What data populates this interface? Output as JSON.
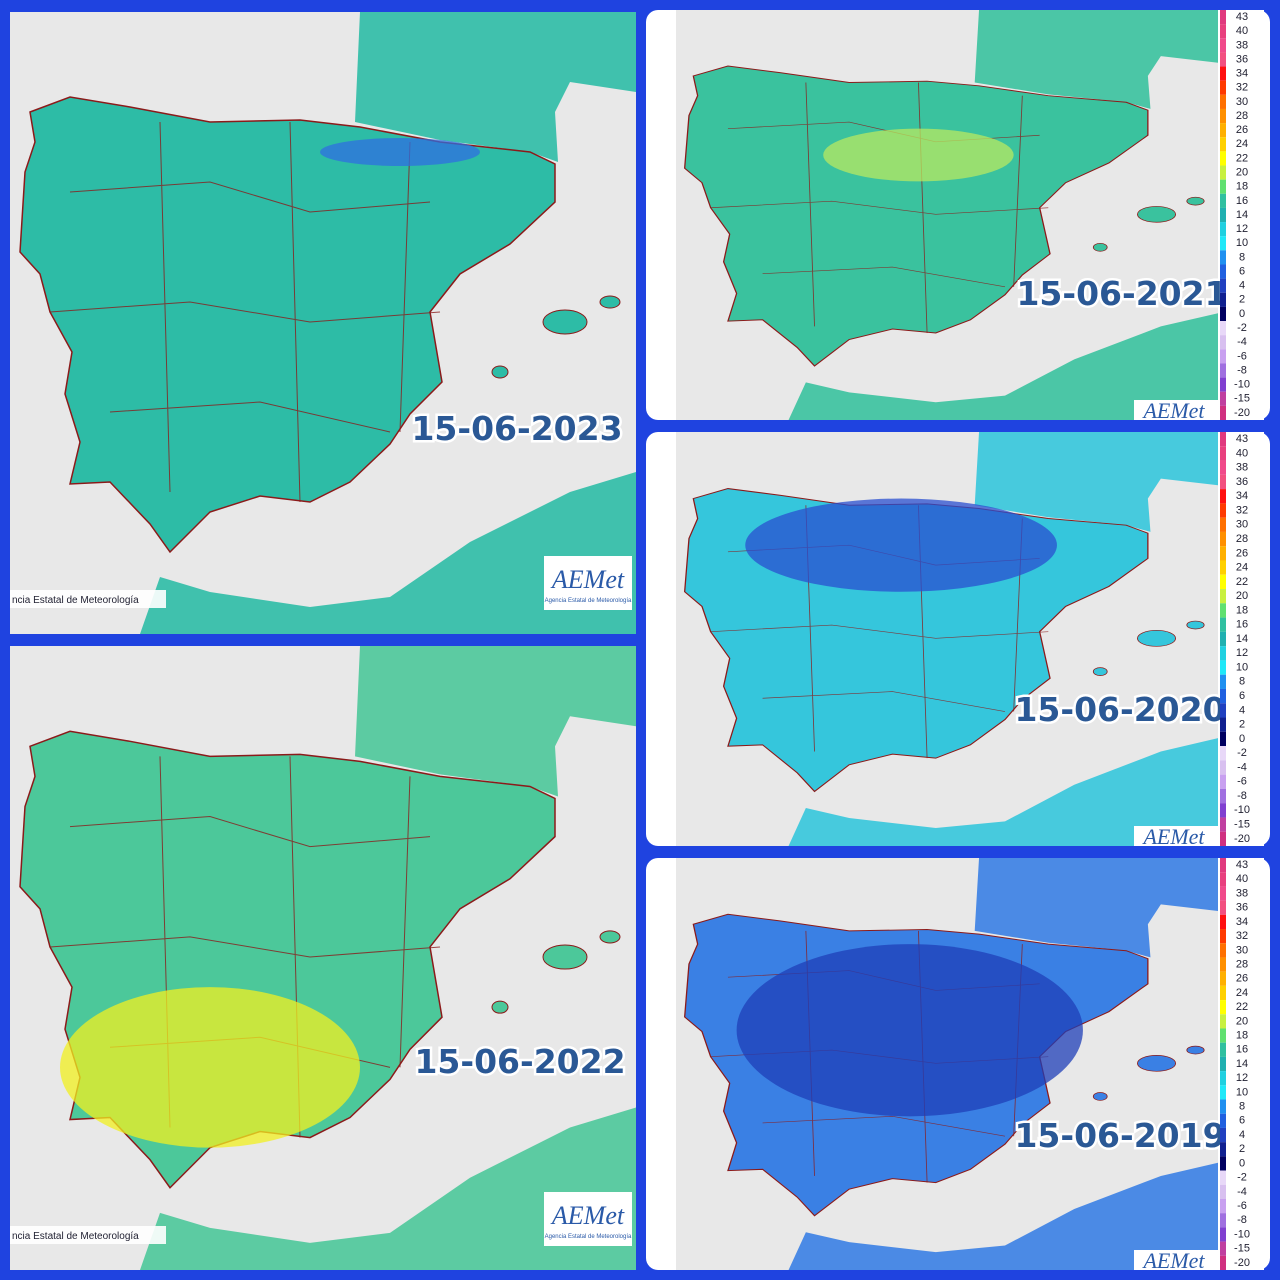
{
  "panels": [
    {
      "date": "15-06-2023",
      "credit": "ncia Estatal de Meteorología",
      "logo": "AEMet",
      "logo_subtitle": "Agencia Estatal de Meteorología"
    },
    {
      "date": "15-06-2022",
      "credit": "ncia Estatal de Meteorología",
      "logo": "AEMet",
      "logo_subtitle": "Agencia Estatal de Meteorología"
    },
    {
      "date": "15-06-2021",
      "logo": "AEMet",
      "legend": [
        "43",
        "40",
        "38",
        "36",
        "34",
        "32",
        "30",
        "28",
        "26",
        "24",
        "22",
        "20",
        "18",
        "16",
        "14",
        "12",
        "10",
        "8",
        "6",
        "4",
        "2",
        "0",
        "-2",
        "-4",
        "-6",
        "-8",
        "-10",
        "-15",
        "-20"
      ]
    },
    {
      "date": "15-06-2020",
      "logo": "AEMet",
      "legend": [
        "43",
        "40",
        "38",
        "36",
        "34",
        "32",
        "30",
        "28",
        "26",
        "24",
        "22",
        "20",
        "18",
        "16",
        "14",
        "12",
        "10",
        "8",
        "6",
        "4",
        "2",
        "0",
        "-2",
        "-4",
        "-6",
        "-8",
        "-10",
        "-15",
        "-20"
      ]
    },
    {
      "date": "15-06-2019",
      "logo": "AEMet",
      "legend": [
        "43",
        "40",
        "38",
        "36",
        "34",
        "32",
        "30",
        "28",
        "26",
        "24",
        "22",
        "20",
        "18",
        "16",
        "14",
        "12",
        "10",
        "8",
        "6",
        "4",
        "2",
        "0",
        "-2",
        "-4",
        "-6",
        "-8",
        "-10",
        "-15",
        "-20"
      ]
    }
  ]
}
